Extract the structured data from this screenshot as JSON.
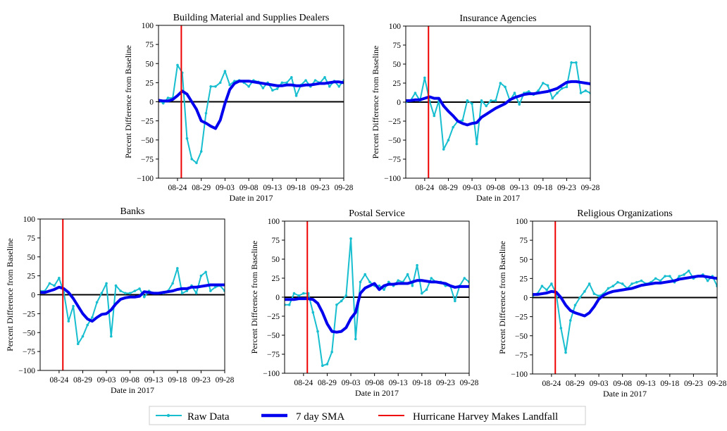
{
  "colors": {
    "raw": "#17becf",
    "sma": "#0000ee",
    "landfall": "#ee0000",
    "zero": "#000000"
  },
  "legend": {
    "raw_label": "Raw Data",
    "sma_label": "7 day SMA",
    "landfall_label": "Hurricane Harvey Makes Landfall"
  },
  "chart_data": [
    {
      "type": "line",
      "title": "Building Material and Supplies Dealers",
      "xlabel": "Date in 2017",
      "ylabel": "Percent Difference from Baseline",
      "ylim": [
        -100,
        100
      ],
      "yticks": [
        -100,
        -75,
        -50,
        -25,
        0,
        25,
        50,
        75,
        100
      ],
      "x_range": [
        0,
        39
      ],
      "xticks": [
        {
          "x": 4,
          "label": "08-24"
        },
        {
          "x": 9,
          "label": "08-29"
        },
        {
          "x": 14,
          "label": "09-03"
        },
        {
          "x": 19,
          "label": "09-08"
        },
        {
          "x": 24,
          "label": "09-13"
        },
        {
          "x": 29,
          "label": "09-18"
        },
        {
          "x": 34,
          "label": "09-23"
        },
        {
          "x": 39,
          "label": "09-28"
        }
      ],
      "landfall_x": 4.8,
      "series": [
        {
          "name": "Raw Data",
          "values": [
            2,
            -2,
            5,
            5,
            48,
            38,
            -48,
            -75,
            -80,
            -65,
            -15,
            20,
            20,
            25,
            40,
            22,
            27,
            28,
            25,
            20,
            28,
            26,
            18,
            25,
            15,
            17,
            25,
            25,
            32,
            8,
            22,
            28,
            20,
            28,
            25,
            32,
            20,
            27,
            20,
            28,
            10
          ]
        },
        {
          "name": "7 day SMA",
          "values": [
            2,
            1,
            1,
            3,
            8,
            14,
            10,
            0,
            -10,
            -25,
            -28,
            -32,
            -35,
            -24,
            -2,
            16,
            24,
            27,
            27,
            27,
            26,
            25,
            24,
            23,
            22,
            21,
            21,
            22,
            22,
            21,
            21,
            22,
            22,
            23,
            24,
            24,
            25,
            26,
            26,
            25,
            23
          ]
        }
      ]
    },
    {
      "type": "line",
      "title": "Insurance Agencies",
      "xlabel": "Date in 2017",
      "ylabel": "Percent Difference from Baseline",
      "ylim": [
        -100,
        100
      ],
      "yticks": [
        -100,
        -75,
        -50,
        -25,
        0,
        25,
        50,
        75,
        100
      ],
      "x_range": [
        0,
        39
      ],
      "xticks": [
        {
          "x": 4,
          "label": "08-24"
        },
        {
          "x": 9,
          "label": "08-29"
        },
        {
          "x": 14,
          "label": "09-03"
        },
        {
          "x": 19,
          "label": "09-08"
        },
        {
          "x": 24,
          "label": "09-13"
        },
        {
          "x": 29,
          "label": "09-18"
        },
        {
          "x": 34,
          "label": "09-23"
        },
        {
          "x": 39,
          "label": "09-28"
        }
      ],
      "landfall_x": 4.8,
      "series": [
        {
          "name": "Raw Data",
          "values": [
            0,
            2,
            12,
            2,
            32,
            2,
            -18,
            2,
            -62,
            -50,
            -33,
            -25,
            -24,
            2,
            -2,
            -55,
            2,
            -5,
            2,
            2,
            25,
            20,
            2,
            12,
            -3,
            12,
            14,
            10,
            15,
            25,
            22,
            5,
            12,
            18,
            20,
            52,
            52,
            12,
            15,
            12,
            15,
            -8
          ]
        },
        {
          "name": "7 day SMA",
          "values": [
            2,
            2,
            3,
            3,
            5,
            7,
            5,
            5,
            -5,
            -12,
            -18,
            -25,
            -28,
            -30,
            -28,
            -27,
            -20,
            -16,
            -12,
            -8,
            -5,
            -2,
            3,
            6,
            8,
            10,
            11,
            11,
            12,
            13,
            14,
            16,
            18,
            22,
            26,
            27,
            27,
            26,
            25,
            24,
            17
          ]
        }
      ]
    },
    {
      "type": "line",
      "title": "Banks",
      "xlabel": "Date in 2017",
      "ylabel": "Percent Difference from Baseline",
      "ylim": [
        -100,
        100
      ],
      "yticks": [
        -100,
        -75,
        -50,
        -25,
        0,
        25,
        50,
        75,
        100
      ],
      "x_range": [
        0,
        39
      ],
      "xticks": [
        {
          "x": 4,
          "label": "08-24"
        },
        {
          "x": 9,
          "label": "08-29"
        },
        {
          "x": 14,
          "label": "09-03"
        },
        {
          "x": 19,
          "label": "09-08"
        },
        {
          "x": 24,
          "label": "09-13"
        },
        {
          "x": 29,
          "label": "09-18"
        },
        {
          "x": 34,
          "label": "09-23"
        },
        {
          "x": 39,
          "label": "09-28"
        }
      ],
      "landfall_x": 4.8,
      "series": [
        {
          "name": "Raw Data",
          "values": [
            5,
            5,
            15,
            12,
            22,
            3,
            -35,
            -15,
            -65,
            -55,
            -40,
            -30,
            -10,
            2,
            15,
            -55,
            12,
            5,
            2,
            2,
            5,
            8,
            -3,
            5,
            2,
            2,
            2,
            5,
            15,
            35,
            2,
            5,
            12,
            2,
            25,
            30,
            5,
            10,
            12,
            5,
            -5
          ]
        },
        {
          "name": "7 day SMA",
          "values": [
            3,
            3,
            5,
            7,
            10,
            8,
            3,
            -5,
            -15,
            -25,
            -32,
            -35,
            -30,
            -26,
            -25,
            -20,
            -12,
            -6,
            -4,
            -3,
            -3,
            -2,
            4,
            3,
            2,
            2,
            3,
            4,
            5,
            7,
            8,
            8,
            10,
            10,
            11,
            12,
            13,
            13,
            13,
            13,
            10
          ]
        }
      ]
    },
    {
      "type": "line",
      "title": "Postal Service",
      "xlabel": "Date in 2017",
      "ylabel": "Percent Difference from Baseline",
      "ylim": [
        -100,
        100
      ],
      "yticks": [
        -100,
        -75,
        -50,
        -25,
        0,
        25,
        50,
        75,
        100
      ],
      "x_range": [
        0,
        39
      ],
      "xticks": [
        {
          "x": 4,
          "label": "08-24"
        },
        {
          "x": 9,
          "label": "08-29"
        },
        {
          "x": 14,
          "label": "09-03"
        },
        {
          "x": 19,
          "label": "09-08"
        },
        {
          "x": 24,
          "label": "09-13"
        },
        {
          "x": 29,
          "label": "09-18"
        },
        {
          "x": 34,
          "label": "09-23"
        },
        {
          "x": 39,
          "label": "09-28"
        }
      ],
      "landfall_x": 4.8,
      "series": [
        {
          "name": "Raw Data",
          "values": [
            -10,
            -10,
            5,
            2,
            5,
            5,
            -20,
            -45,
            -90,
            -88,
            -72,
            -10,
            -5,
            2,
            77,
            -55,
            20,
            30,
            20,
            15,
            15,
            10,
            20,
            15,
            22,
            20,
            30,
            15,
            42,
            5,
            10,
            25,
            20,
            20,
            15,
            15,
            -5,
            15,
            25,
            20,
            5
          ]
        },
        {
          "name": "7 day SMA",
          "values": [
            -3,
            -3,
            -3,
            -2,
            -2,
            -2,
            -3,
            -8,
            -20,
            -35,
            -45,
            -46,
            -45,
            -40,
            -28,
            -20,
            5,
            12,
            15,
            18,
            10,
            15,
            17,
            17,
            18,
            18,
            18,
            20,
            22,
            22,
            21,
            20,
            20,
            19,
            18,
            15,
            13,
            14,
            14,
            14,
            14
          ]
        }
      ]
    },
    {
      "type": "line",
      "title": "Religious Organizations",
      "xlabel": "Date in 2017",
      "ylabel": "Percent Difference from Baseline",
      "ylim": [
        -100,
        100
      ],
      "yticks": [
        -100,
        -75,
        -50,
        -25,
        0,
        25,
        50,
        75,
        100
      ],
      "x_range": [
        0,
        39
      ],
      "xticks": [
        {
          "x": 4,
          "label": "08-24"
        },
        {
          "x": 9,
          "label": "08-29"
        },
        {
          "x": 14,
          "label": "09-03"
        },
        {
          "x": 19,
          "label": "09-08"
        },
        {
          "x": 24,
          "label": "09-13"
        },
        {
          "x": 29,
          "label": "09-18"
        },
        {
          "x": 34,
          "label": "09-23"
        },
        {
          "x": 39,
          "label": "09-28"
        }
      ],
      "landfall_x": 4.8,
      "series": [
        {
          "name": "Raw Data",
          "values": [
            2,
            5,
            15,
            10,
            18,
            5,
            -40,
            -72,
            -30,
            -10,
            0,
            8,
            18,
            5,
            2,
            5,
            12,
            15,
            20,
            18,
            12,
            18,
            20,
            22,
            18,
            20,
            25,
            22,
            28,
            28,
            20,
            28,
            30,
            35,
            25,
            28,
            30,
            22,
            28,
            15,
            18
          ]
        },
        {
          "name": "7 day SMA",
          "values": [
            4,
            4,
            5,
            6,
            8,
            7,
            0,
            -10,
            -17,
            -20,
            -22,
            -24,
            -20,
            -12,
            -2,
            3,
            6,
            8,
            9,
            10,
            11,
            12,
            14,
            16,
            17,
            18,
            19,
            19,
            20,
            21,
            22,
            24,
            25,
            26,
            27,
            28,
            28,
            27,
            26,
            25,
            20
          ]
        }
      ]
    }
  ]
}
